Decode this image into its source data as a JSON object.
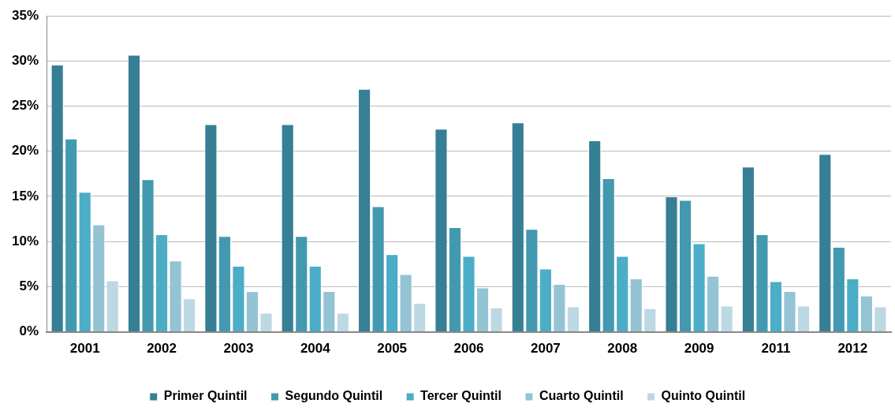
{
  "chart_data": {
    "type": "bar",
    "categories": [
      "2001",
      "2002",
      "2003",
      "2004",
      "2005",
      "2006",
      "2007",
      "2008",
      "2009",
      "2011",
      "2012"
    ],
    "series": [
      {
        "name": "Primer Quintil",
        "color": "#367f94",
        "values": [
          29.6,
          30.7,
          23.0,
          23.0,
          26.9,
          22.5,
          23.2,
          21.2,
          15.0,
          18.3,
          19.7
        ]
      },
      {
        "name": "Segundo Quintil",
        "color": "#4299b0",
        "values": [
          21.4,
          16.9,
          10.6,
          10.6,
          13.9,
          11.6,
          11.4,
          17.0,
          14.6,
          10.8,
          9.4
        ]
      },
      {
        "name": "Tercer Quintil",
        "color": "#4badc6",
        "values": [
          15.5,
          10.8,
          7.3,
          7.3,
          8.6,
          8.4,
          7.0,
          8.4,
          9.8,
          5.6,
          5.9
        ]
      },
      {
        "name": "Cuarto Quintil",
        "color": "#94c3d4",
        "values": [
          11.9,
          7.9,
          4.5,
          4.5,
          6.4,
          4.9,
          5.3,
          5.9,
          6.2,
          4.5,
          4.0
        ]
      },
      {
        "name": "Quinto Quintil",
        "color": "#bcd8e3",
        "values": [
          5.7,
          3.7,
          2.1,
          2.1,
          3.2,
          2.7,
          2.8,
          2.6,
          2.9,
          2.9,
          2.8
        ]
      }
    ],
    "ylim": [
      0,
      35
    ],
    "yticks": [
      {
        "value": 0,
        "label": "0%"
      },
      {
        "value": 5,
        "label": "5%"
      },
      {
        "value": 10,
        "label": "10%"
      },
      {
        "value": 15,
        "label": "15%"
      },
      {
        "value": 20,
        "label": "20%"
      },
      {
        "value": 25,
        "label": "25%"
      },
      {
        "value": 30,
        "label": "30%"
      },
      {
        "value": 35,
        "label": "35%"
      }
    ],
    "grid": "y",
    "legend": "bottom"
  }
}
